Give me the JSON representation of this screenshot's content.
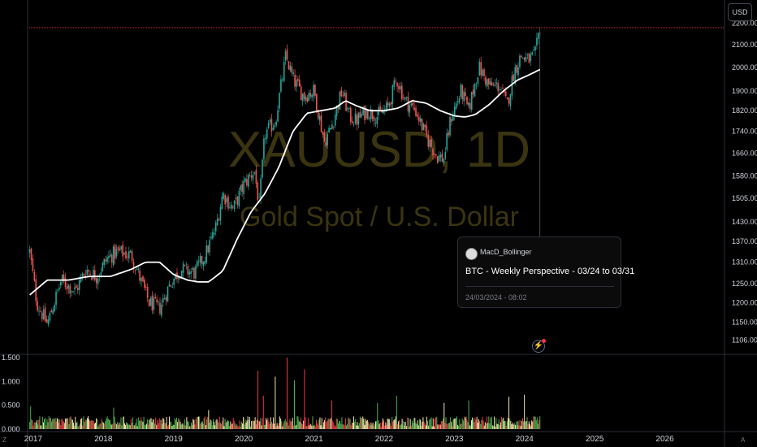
{
  "ui": {
    "currency": "USD",
    "watermark_symbol": "XAUUSD, 1D",
    "watermark_name": "Gold Spot / U.S. Dollar",
    "left_corner_icon": "Z",
    "right_corner_icon": "A",
    "idea": {
      "author": "MacD_Bollinger",
      "title": "BTC - Weekly Perspective - 03/24 to 03/31",
      "date": "24/03/2024 - 08:02"
    },
    "flash_icon": "lightning-icon"
  },
  "colors": {
    "background": "#000000",
    "up": "#26a69a",
    "down": "#ef5350",
    "moving_average": "#ffffff",
    "price_line": "#f23645",
    "watermark": "#3a3410",
    "volume_up": "#4caf50",
    "volume_down": "#f23645",
    "volume_neutral": "#f5e6a8"
  },
  "chart_data": [
    {
      "type": "candlestick",
      "title": "XAUUSD, 1D",
      "subtitle": "Gold Spot / U.S. Dollar",
      "x_ticks": [
        "2017",
        "2018",
        "2019",
        "2020",
        "2021",
        "2022",
        "2023",
        "2024",
        "2025",
        "2026"
      ],
      "y_ticks": [
        1106,
        1150,
        1200,
        1250,
        1310,
        1370,
        1430,
        1505,
        1580,
        1660,
        1740,
        1820,
        1900,
        2000,
        2100,
        2200
      ],
      "y_tick_labels": [
        "1106.000",
        "1150.000",
        "1200.000",
        "1250.000",
        "1310.000",
        "1370.000",
        "1430.000",
        "1505.000",
        "1580.000",
        "1660.000",
        "1740.000",
        "1820.000",
        "1900.000",
        "2000.000",
        "2100.000",
        "2200.000"
      ],
      "y_scale": "log",
      "ylim": [
        1080,
        2250
      ],
      "xlim": [
        2016.92,
        2026.85
      ],
      "price_path": {
        "x": [
          2016.95,
          2017.05,
          2017.2,
          2017.4,
          2017.6,
          2017.75,
          2017.9,
          2018.05,
          2018.2,
          2018.4,
          2018.55,
          2018.65,
          2018.8,
          2018.95,
          2019.1,
          2019.3,
          2019.45,
          2019.6,
          2019.7,
          2019.85,
          2020.0,
          2020.15,
          2020.22,
          2020.3,
          2020.45,
          2020.6,
          2020.7,
          2020.85,
          2021.0,
          2021.15,
          2021.25,
          2021.4,
          2021.5,
          2021.6,
          2021.75,
          2021.9,
          2022.05,
          2022.18,
          2022.3,
          2022.45,
          2022.6,
          2022.75,
          2022.85,
          2022.95,
          2023.1,
          2023.2,
          2023.35,
          2023.5,
          2023.65,
          2023.75,
          2023.85,
          2023.95,
          2024.05,
          2024.15,
          2024.22
        ],
        "y": [
          1340,
          1200,
          1145,
          1260,
          1230,
          1290,
          1270,
          1320,
          1340,
          1330,
          1250,
          1200,
          1185,
          1250,
          1290,
          1280,
          1330,
          1410,
          1520,
          1470,
          1550,
          1600,
          1480,
          1730,
          1780,
          2050,
          1950,
          1880,
          1900,
          1700,
          1760,
          1900,
          1800,
          1780,
          1820,
          1800,
          1830,
          1950,
          1860,
          1820,
          1720,
          1650,
          1640,
          1790,
          1900,
          1820,
          2000,
          1920,
          1920,
          1840,
          1980,
          2050,
          2030,
          2050,
          2180
        ]
      },
      "moving_average": {
        "x": [
          2016.95,
          2017.2,
          2017.5,
          2017.8,
          2018.1,
          2018.4,
          2018.6,
          2018.8,
          2019.0,
          2019.2,
          2019.35,
          2019.5,
          2019.7,
          2019.9,
          2020.1,
          2020.3,
          2020.5,
          2020.7,
          2020.9,
          2021.1,
          2021.3,
          2021.45,
          2021.6,
          2021.8,
          2022.0,
          2022.2,
          2022.4,
          2022.6,
          2022.8,
          2023.0,
          2023.15,
          2023.3,
          2023.5,
          2023.7,
          2023.9,
          2024.05,
          2024.22
        ],
        "y": [
          1220,
          1260,
          1260,
          1270,
          1270,
          1290,
          1310,
          1310,
          1275,
          1260,
          1255,
          1255,
          1285,
          1375,
          1460,
          1520,
          1610,
          1740,
          1810,
          1820,
          1830,
          1860,
          1840,
          1820,
          1820,
          1830,
          1860,
          1850,
          1820,
          1800,
          1795,
          1805,
          1845,
          1900,
          1945,
          1965,
          1990
        ]
      },
      "last_price": 2180
    },
    {
      "type": "bar",
      "title": "Volume",
      "y_ticks": [
        0,
        0.5,
        1.0,
        1.5
      ],
      "y_tick_labels": [
        "0.000",
        "0.500",
        "1.000",
        "1.500"
      ],
      "ylim": [
        0,
        1.55
      ],
      "xlim": [
        2016.92,
        2026.85
      ],
      "typical_level": 0.18,
      "spikes": [
        {
          "x": 2016.96,
          "value": 0.48
        },
        {
          "x": 2018.15,
          "value": 0.45
        },
        {
          "x": 2019.5,
          "value": 0.4
        },
        {
          "x": 2020.2,
          "value": 1.22
        },
        {
          "x": 2020.28,
          "value": 0.7
        },
        {
          "x": 2020.45,
          "value": 1.1
        },
        {
          "x": 2020.62,
          "value": 1.5
        },
        {
          "x": 2020.72,
          "value": 1.02
        },
        {
          "x": 2020.86,
          "value": 1.25
        },
        {
          "x": 2021.25,
          "value": 0.6
        },
        {
          "x": 2021.9,
          "value": 0.55
        },
        {
          "x": 2022.18,
          "value": 0.7
        },
        {
          "x": 2022.85,
          "value": 0.55
        },
        {
          "x": 2023.2,
          "value": 0.6
        },
        {
          "x": 2023.78,
          "value": 0.68
        },
        {
          "x": 2024.0,
          "value": 0.72
        },
        {
          "x": 2024.2,
          "value": 0.45
        }
      ]
    }
  ]
}
